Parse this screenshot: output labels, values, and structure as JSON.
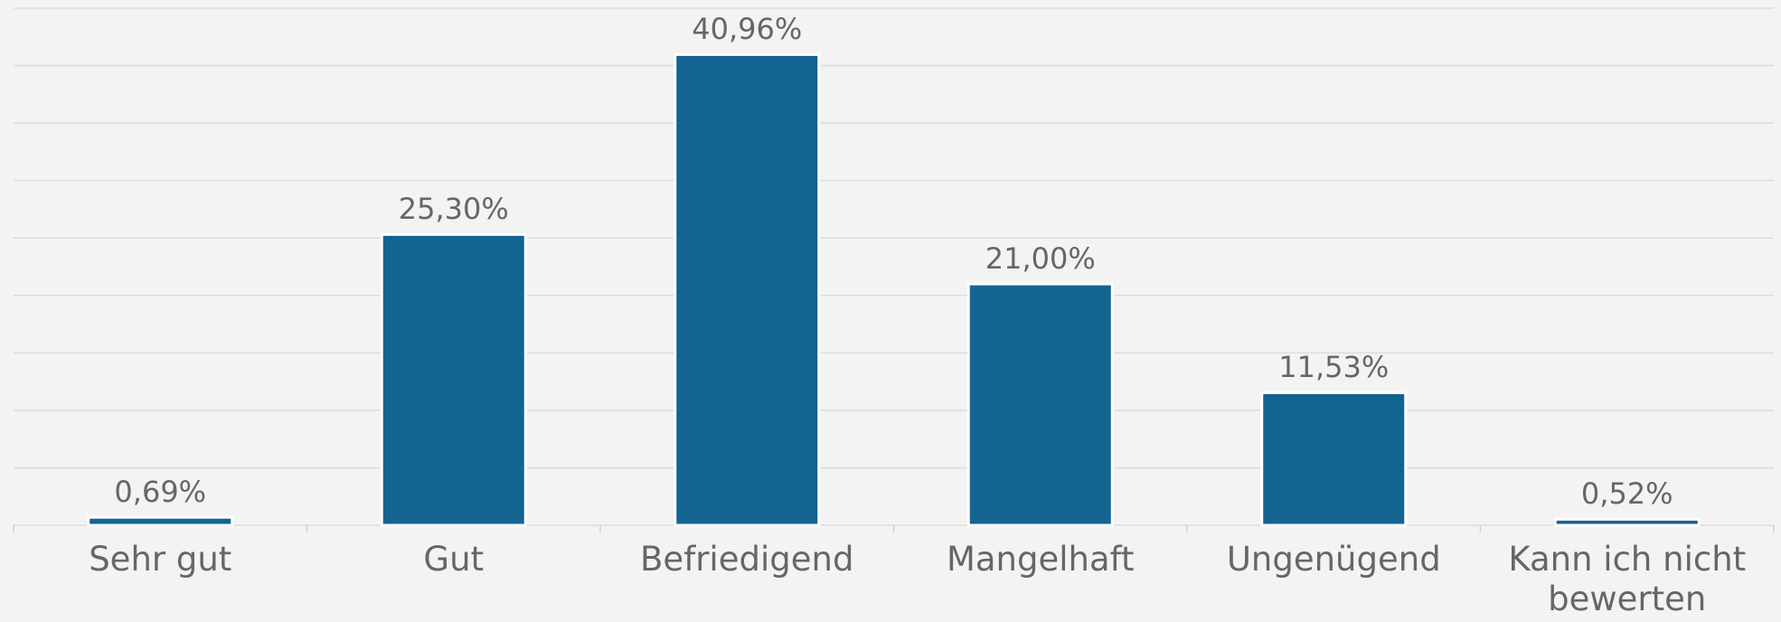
{
  "chart_data": {
    "type": "bar",
    "categories": [
      "Sehr gut",
      "Gut",
      "Befriedigend",
      "Mangelhaft",
      "Ungenügend",
      "Kann ich nicht bewerten"
    ],
    "values": [
      0.69,
      25.3,
      40.96,
      21.0,
      11.53,
      0.52
    ],
    "value_labels": [
      "0,69%",
      "25,30%",
      "40,96%",
      "21,00%",
      "11,53%",
      "0,52%"
    ],
    "color": "#136491",
    "ylim": [
      0,
      45
    ],
    "yticks": [
      0,
      5,
      10,
      15,
      20,
      25,
      30,
      35,
      40,
      45
    ],
    "grid": true
  }
}
